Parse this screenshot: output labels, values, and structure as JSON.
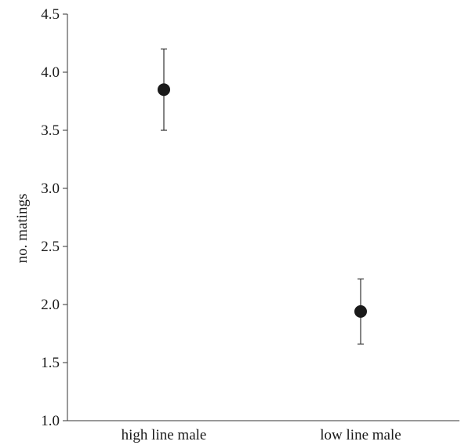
{
  "chart_data": {
    "type": "scatter",
    "title": "",
    "xlabel": "",
    "ylabel": "no. matings",
    "ylim": [
      1.0,
      4.5
    ],
    "yticks": [
      "1.0",
      "1.5",
      "2.0",
      "2.5",
      "3.0",
      "3.5",
      "4.0",
      "4.5"
    ],
    "categories": [
      "high line male",
      "low line male"
    ],
    "values": [
      3.85,
      1.94
    ],
    "error_low": [
      3.5,
      1.66
    ],
    "error_high": [
      4.2,
      2.22
    ],
    "grid": false,
    "colors": {
      "marker": "#1a1a1a",
      "axis": "#333333"
    }
  }
}
